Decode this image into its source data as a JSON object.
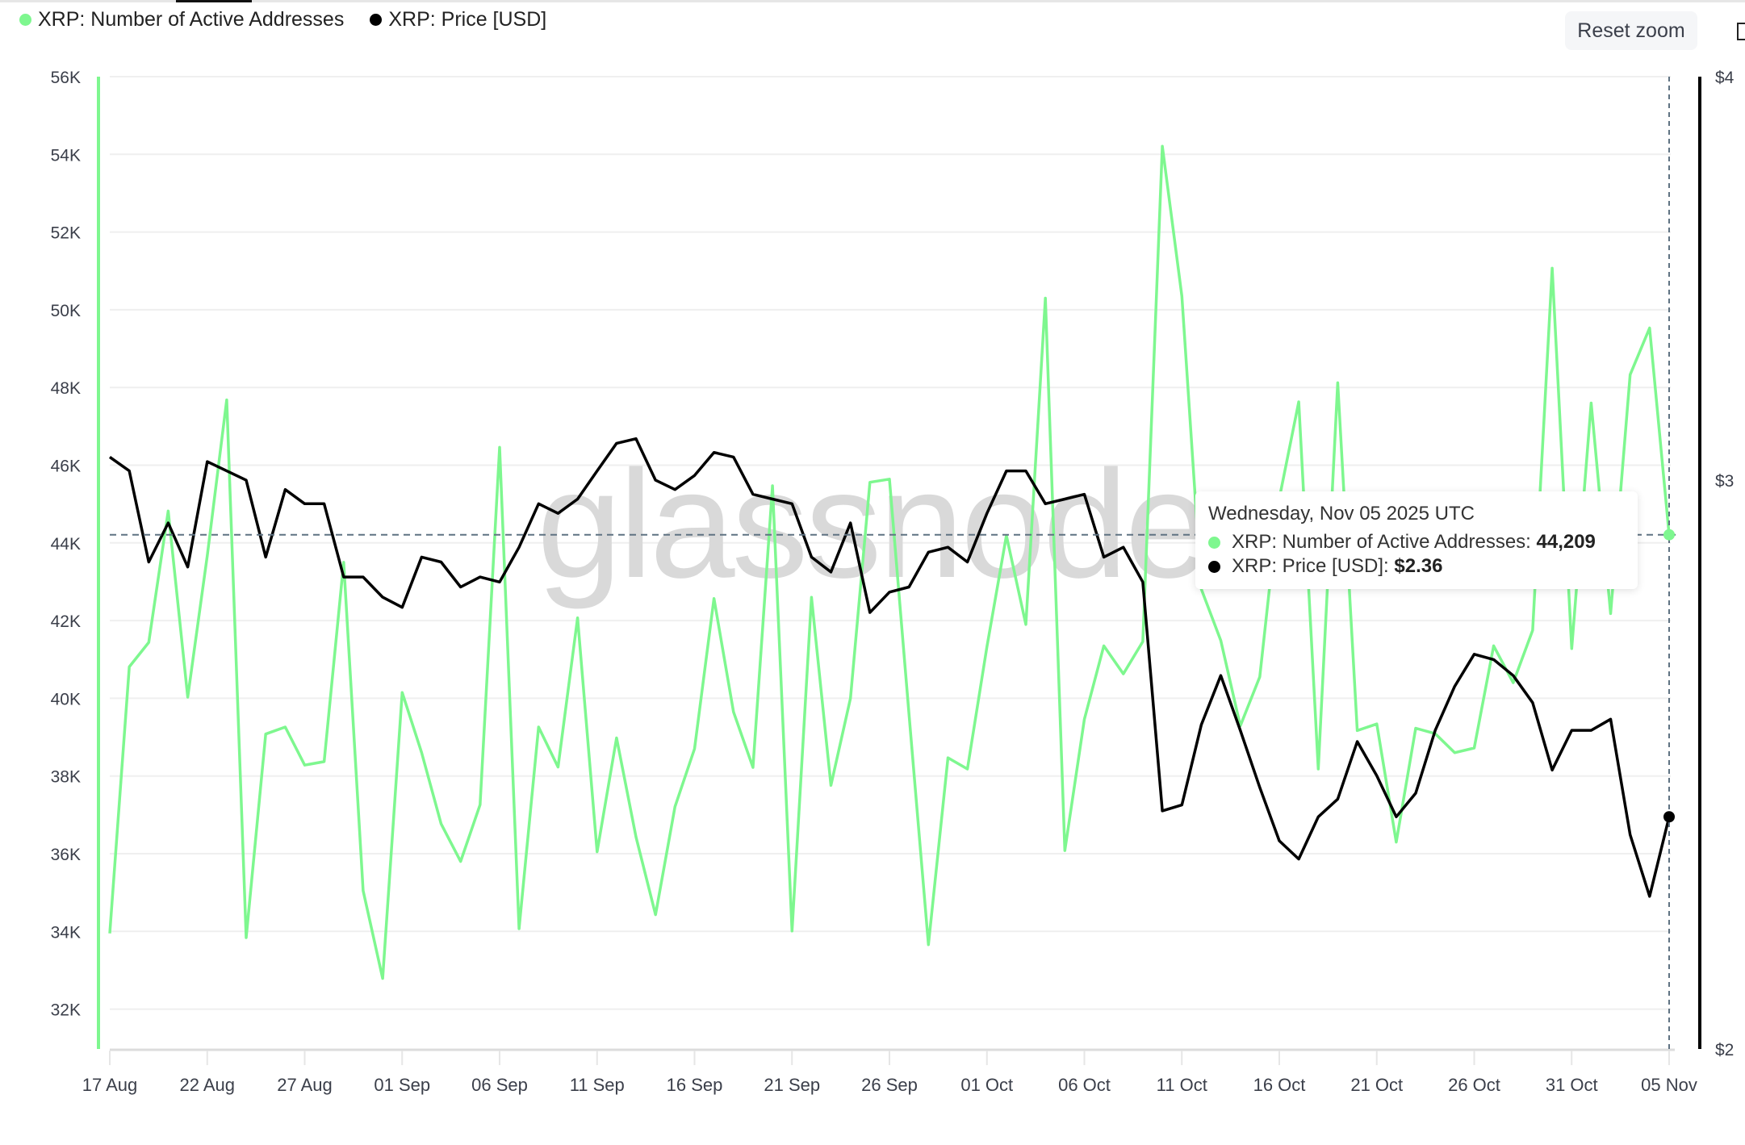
{
  "legend": {
    "series": [
      {
        "label": "XRP: Number of Active Addresses",
        "color": "#7ef78f"
      },
      {
        "label": "XRP: Price [USD]",
        "color": "#000000"
      }
    ]
  },
  "toolbar": {
    "reset_zoom_label": "Reset zoom"
  },
  "watermark": "glassnode",
  "tooltip": {
    "date": "Wednesday, Nov 05 2025 UTC",
    "rows": [
      {
        "label": "XRP: Number of Active Addresses:",
        "value": "44,209",
        "color": "#7ef78f"
      },
      {
        "label": "XRP: Price [USD]:",
        "value": "$2.36",
        "color": "#000000"
      }
    ]
  },
  "chart_data": {
    "type": "line",
    "title": "",
    "xlabel": "",
    "ylabel": "Number of Active Addresses",
    "y2label": "Price [USD]",
    "ylim": [
      31000,
      56000
    ],
    "y2lim": [
      2,
      4
    ],
    "y2scale": "log",
    "grid": true,
    "legend_position": "top-left",
    "yticks": [
      "56K",
      "54K",
      "52K",
      "50K",
      "48K",
      "46K",
      "44K",
      "42K",
      "40K",
      "38K",
      "36K",
      "34K",
      "32K"
    ],
    "ytick_values": [
      56000,
      54000,
      52000,
      50000,
      48000,
      46000,
      44000,
      42000,
      40000,
      38000,
      36000,
      34000,
      32000
    ],
    "y2ticks": [
      "$4",
      "$3",
      "$2"
    ],
    "y2tick_values": [
      4,
      3,
      2
    ],
    "xticks": [
      "17 Aug",
      "22 Aug",
      "27 Aug",
      "01 Sep",
      "06 Sep",
      "11 Sep",
      "16 Sep",
      "21 Sep",
      "26 Sep",
      "01 Oct",
      "06 Oct",
      "11 Oct",
      "16 Oct",
      "21 Oct",
      "26 Oct",
      "31 Oct",
      "05 Nov"
    ],
    "x_start": "2025-08-17",
    "x_end": "2025-11-05",
    "crosshair": {
      "date": "2025-11-05",
      "active_addresses": 44209,
      "price": 2.36
    },
    "series": [
      {
        "name": "XRP: Number of Active Addresses",
        "axis": "left",
        "color": "#7ef78f",
        "values": [
          33950,
          40810,
          41440,
          44820,
          40030,
          43670,
          47680,
          33840,
          39080,
          39260,
          38280,
          38370,
          43500,
          35050,
          32790,
          40150,
          38600,
          36770,
          35800,
          37260,
          46460,
          34070,
          39260,
          38230,
          42070,
          36050,
          38980,
          36430,
          34430,
          37210,
          38700,
          42570,
          39650,
          38220,
          45470,
          34010,
          42600,
          37760,
          40000,
          45560,
          45640,
          39600,
          33660,
          38470,
          38180,
          41330,
          44190,
          41900,
          50300,
          36080,
          39460,
          41350,
          40630,
          41460,
          54210,
          50350,
          42810,
          41490,
          39290,
          40550,
          45140,
          47630,
          38180,
          48120,
          39170,
          39340,
          36300,
          39230,
          39090,
          38600,
          38720,
          41350,
          40400,
          41750,
          51070,
          41280,
          47600,
          42180,
          48330,
          49530,
          44209
        ]
      },
      {
        "name": "XRP: Price [USD]",
        "axis": "right",
        "color": "#000000",
        "values": [
          3.05,
          3.02,
          2.83,
          2.91,
          2.82,
          3.04,
          3.02,
          3.0,
          2.84,
          2.98,
          2.95,
          2.95,
          2.8,
          2.8,
          2.76,
          2.74,
          2.84,
          2.83,
          2.78,
          2.8,
          2.79,
          2.86,
          2.95,
          2.93,
          2.96,
          3.02,
          3.08,
          3.09,
          3.0,
          2.98,
          3.01,
          3.06,
          3.05,
          2.97,
          2.96,
          2.95,
          2.84,
          2.81,
          2.91,
          2.73,
          2.77,
          2.78,
          2.85,
          2.86,
          2.83,
          2.93,
          3.02,
          3.02,
          2.95,
          2.96,
          2.97,
          2.84,
          2.86,
          2.79,
          2.37,
          2.38,
          2.52,
          2.61,
          2.51,
          2.41,
          2.32,
          2.29,
          2.36,
          2.39,
          2.49,
          2.43,
          2.36,
          2.4,
          2.51,
          2.59,
          2.65,
          2.64,
          2.61,
          2.56,
          2.44,
          2.51,
          2.51,
          2.53,
          2.33,
          2.23,
          2.36
        ]
      }
    ]
  }
}
